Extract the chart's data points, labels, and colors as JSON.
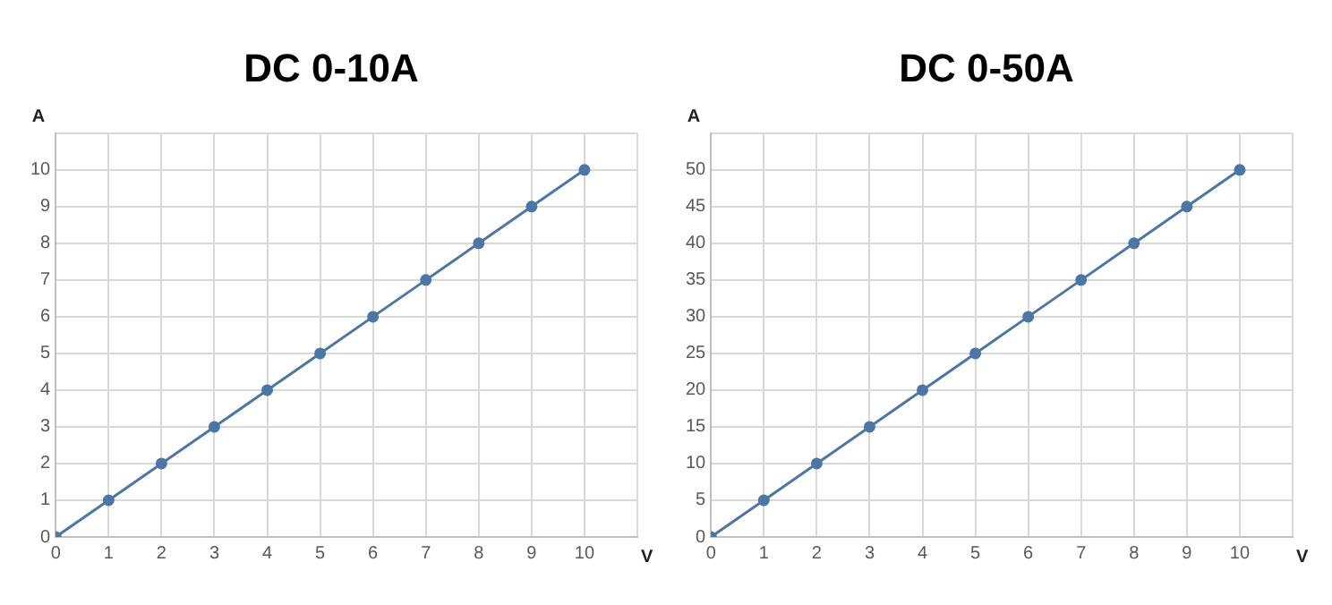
{
  "chart_data": [
    {
      "type": "line",
      "title": "DC 0-10A",
      "xlabel": "V",
      "ylabel": "A",
      "x": [
        0,
        1,
        2,
        3,
        4,
        5,
        6,
        7,
        8,
        9,
        10
      ],
      "series": [
        {
          "color": "#4a76a8",
          "values": [
            0,
            1,
            2,
            3,
            4,
            5,
            6,
            7,
            8,
            9,
            10
          ]
        }
      ],
      "xlim": [
        0,
        11
      ],
      "xticks": [
        0,
        1,
        2,
        3,
        4,
        5,
        6,
        7,
        8,
        9,
        10,
        {
          "value": 11,
          "label": null
        }
      ],
      "ylim": [
        0,
        11
      ],
      "yticks": [
        0,
        1,
        2,
        3,
        4,
        5,
        6,
        7,
        8,
        9,
        10,
        {
          "value": 11,
          "label": null
        }
      ],
      "grid": true,
      "marker": "circle",
      "legend": false
    },
    {
      "type": "line",
      "title": "DC 0-50A",
      "xlabel": "V",
      "ylabel": "A",
      "x": [
        0,
        1,
        2,
        3,
        4,
        5,
        6,
        7,
        8,
        9,
        10
      ],
      "series": [
        {
          "color": "#4a76a8",
          "values": [
            0,
            5,
            10,
            15,
            20,
            25,
            30,
            35,
            40,
            45,
            50
          ]
        }
      ],
      "xlim": [
        0,
        11
      ],
      "xticks": [
        0,
        1,
        2,
        3,
        4,
        5,
        6,
        7,
        8,
        9,
        10,
        {
          "value": 11,
          "label": null
        }
      ],
      "ylim": [
        0,
        55
      ],
      "yticks": [
        0,
        5,
        10,
        15,
        20,
        25,
        30,
        35,
        40,
        45,
        50,
        {
          "value": 55,
          "label": null
        }
      ],
      "grid": true,
      "marker": "circle",
      "legend": false
    }
  ]
}
